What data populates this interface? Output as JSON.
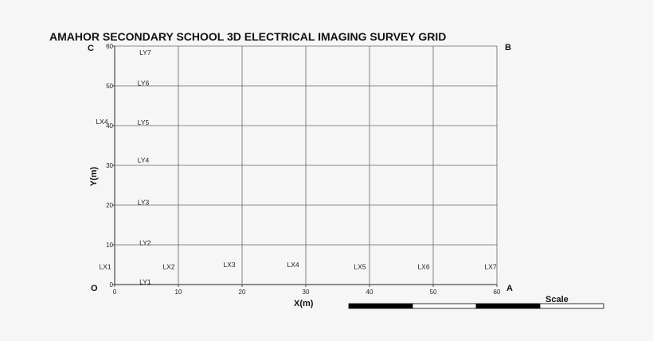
{
  "title": "AMAHOR SECONDARY SCHOOL 3D ELECTRICAL IMAGING  SURVEY  GRID",
  "axes": {
    "xlabel": "X(m)",
    "ylabel": "Y(m)",
    "xlim": [
      0,
      60
    ],
    "ylim": [
      0,
      60
    ],
    "xticks": [
      "0",
      "10",
      "20",
      "30",
      "40",
      "50",
      "60"
    ],
    "yticks": [
      "0",
      "10",
      "20",
      "30",
      "40",
      "50",
      "60"
    ]
  },
  "corners": {
    "top_left": "C",
    "top_right": "B",
    "bottom_left": "O",
    "bottom_right": "A"
  },
  "scale": {
    "label": "Scale",
    "segments": [
      "black",
      "white",
      "black",
      "white"
    ]
  },
  "colors": {
    "grid": "#666666",
    "text": "#111111",
    "background": "#f6f6f6"
  },
  "chart_data": {
    "type": "scatter",
    "title": "AMAHOR SECONDARY SCHOOL 3D ELECTRICAL IMAGING  SURVEY  GRID",
    "xlabel": "X(m)",
    "ylabel": "Y(m)",
    "xlim": [
      0,
      60
    ],
    "ylim": [
      0,
      60
    ],
    "grid": true,
    "x_lines": [
      10,
      20,
      30,
      40,
      50,
      60
    ],
    "y_lines": [
      10,
      20,
      30,
      40,
      50,
      60
    ],
    "annotations": [
      {
        "text": "LX1",
        "x": -1.5,
        "y": 4.5
      },
      {
        "text": "LX2",
        "x": 8.5,
        "y": 4.5
      },
      {
        "text": "LX3",
        "x": 18,
        "y": 5
      },
      {
        "text": "LX4",
        "x": 28,
        "y": 5
      },
      {
        "text": "LX5",
        "x": 38.5,
        "y": 4.5
      },
      {
        "text": "LX6",
        "x": 48.5,
        "y": 4.5
      },
      {
        "text": "LX7",
        "x": 59,
        "y": 4.5
      },
      {
        "text": "LX4",
        "x": -2,
        "y": 41
      },
      {
        "text": "LY1",
        "x": 4.8,
        "y": 0.7
      },
      {
        "text": "LY2",
        "x": 4.8,
        "y": 10.5
      },
      {
        "text": "LY3",
        "x": 4.5,
        "y": 20.7
      },
      {
        "text": "LY4",
        "x": 4.5,
        "y": 31.3
      },
      {
        "text": "LY5",
        "x": 4.5,
        "y": 40.8
      },
      {
        "text": "LY6",
        "x": 4.5,
        "y": 50.7
      },
      {
        "text": "LY7",
        "x": 4.8,
        "y": 58.4
      }
    ]
  }
}
